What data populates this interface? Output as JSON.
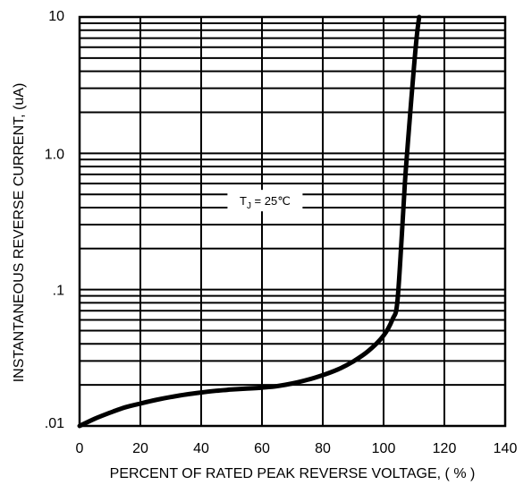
{
  "chart_data": {
    "type": "line",
    "xlabel": "PERCENT OF RATED PEAK REVERSE VOLTAGE, ( % )",
    "ylabel": "INSTANTANEOUS REVERSE CURRENT, (uA)",
    "xlim": [
      0,
      140
    ],
    "ylim": [
      0.01,
      10
    ],
    "yscale": "log",
    "grid": true,
    "x_ticks": [
      "0",
      "20",
      "40",
      "60",
      "80",
      "100",
      "120",
      "140"
    ],
    "y_ticks": [
      ".01",
      ".1",
      "1.0",
      "10"
    ],
    "annotation": {
      "main": "T",
      "sub": "J",
      "rest": " = 25℃",
      "x": 61,
      "y": 0.45
    },
    "series": [
      {
        "points": [
          [
            0,
            0.01
          ],
          [
            5,
            0.0113
          ],
          [
            10,
            0.0125
          ],
          [
            15,
            0.0137
          ],
          [
            20,
            0.0146
          ],
          [
            25,
            0.0155
          ],
          [
            30,
            0.0163
          ],
          [
            35,
            0.017
          ],
          [
            40,
            0.0176
          ],
          [
            45,
            0.0181
          ],
          [
            50,
            0.0185
          ],
          [
            55,
            0.0188
          ],
          [
            60,
            0.0191
          ],
          [
            65,
            0.0196
          ],
          [
            70,
            0.0205
          ],
          [
            75,
            0.0218
          ],
          [
            80,
            0.0236
          ],
          [
            85,
            0.026
          ],
          [
            90,
            0.0297
          ],
          [
            95,
            0.0355
          ],
          [
            100,
            0.046
          ],
          [
            103,
            0.061
          ],
          [
            104.5,
            0.08
          ],
          [
            106,
            0.25
          ],
          [
            107,
            0.6
          ],
          [
            108,
            1.2
          ],
          [
            109,
            2.3
          ],
          [
            110,
            4.3
          ],
          [
            111,
            7.5
          ],
          [
            111.7,
            10
          ]
        ],
        "color": "#000000"
      }
    ]
  }
}
